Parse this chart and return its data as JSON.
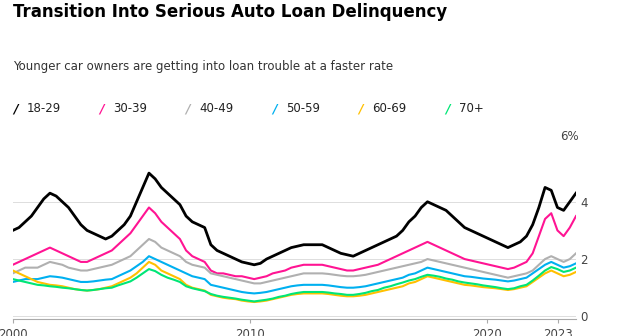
{
  "title": "Transition Into Serious Auto Loan Delinquency",
  "subtitle": "Younger car owners are getting into loan trouble at a faster rate",
  "legend": [
    "18-29",
    "30-39",
    "40-49",
    "50-59",
    "60-69",
    "70+"
  ],
  "colors": [
    "#000000",
    "#ff1493",
    "#b0b0b0",
    "#00b0f0",
    "#ffc000",
    "#00e676"
  ],
  "xlim": [
    2000,
    2023.75
  ],
  "ylim": [
    -0.1,
    6.0
  ],
  "yticks": [
    0,
    2,
    4
  ],
  "ytick_labels": [
    "0",
    "2",
    "4"
  ],
  "xticks": [
    2000,
    2010,
    2020,
    2023
  ],
  "background": "#ffffff",
  "series": {
    "18-29": [
      3.0,
      3.1,
      3.3,
      3.5,
      3.8,
      4.1,
      4.3,
      4.2,
      4.0,
      3.8,
      3.5,
      3.2,
      3.0,
      2.9,
      2.8,
      2.7,
      2.8,
      3.0,
      3.2,
      3.5,
      4.0,
      4.5,
      5.0,
      4.8,
      4.5,
      4.3,
      4.1,
      3.9,
      3.5,
      3.3,
      3.2,
      3.1,
      2.5,
      2.3,
      2.2,
      2.1,
      2.0,
      1.9,
      1.85,
      1.8,
      1.85,
      2.0,
      2.1,
      2.2,
      2.3,
      2.4,
      2.45,
      2.5,
      2.5,
      2.5,
      2.5,
      2.4,
      2.3,
      2.2,
      2.15,
      2.1,
      2.2,
      2.3,
      2.4,
      2.5,
      2.6,
      2.7,
      2.8,
      3.0,
      3.3,
      3.5,
      3.8,
      4.0,
      3.9,
      3.8,
      3.7,
      3.5,
      3.3,
      3.1,
      3.0,
      2.9,
      2.8,
      2.7,
      2.6,
      2.5,
      2.4,
      2.5,
      2.6,
      2.8,
      3.2,
      3.8,
      4.5,
      4.4,
      3.8,
      3.7,
      4.0,
      4.3
    ],
    "30-39": [
      1.8,
      1.9,
      2.0,
      2.1,
      2.2,
      2.3,
      2.4,
      2.3,
      2.2,
      2.1,
      2.0,
      1.9,
      1.9,
      2.0,
      2.1,
      2.2,
      2.3,
      2.5,
      2.7,
      2.9,
      3.2,
      3.5,
      3.8,
      3.6,
      3.3,
      3.1,
      2.9,
      2.7,
      2.3,
      2.1,
      2.0,
      1.9,
      1.6,
      1.5,
      1.5,
      1.45,
      1.4,
      1.4,
      1.35,
      1.3,
      1.35,
      1.4,
      1.5,
      1.55,
      1.6,
      1.7,
      1.75,
      1.8,
      1.8,
      1.8,
      1.8,
      1.75,
      1.7,
      1.65,
      1.6,
      1.6,
      1.65,
      1.7,
      1.75,
      1.8,
      1.9,
      2.0,
      2.1,
      2.2,
      2.3,
      2.4,
      2.5,
      2.6,
      2.5,
      2.4,
      2.3,
      2.2,
      2.1,
      2.0,
      1.95,
      1.9,
      1.85,
      1.8,
      1.75,
      1.7,
      1.65,
      1.7,
      1.8,
      1.9,
      2.2,
      2.8,
      3.4,
      3.6,
      3.0,
      2.8,
      3.1,
      3.5
    ],
    "40-49": [
      1.5,
      1.6,
      1.7,
      1.7,
      1.7,
      1.8,
      1.9,
      1.85,
      1.8,
      1.7,
      1.65,
      1.6,
      1.6,
      1.65,
      1.7,
      1.75,
      1.8,
      1.9,
      2.0,
      2.1,
      2.3,
      2.5,
      2.7,
      2.6,
      2.4,
      2.3,
      2.2,
      2.1,
      1.9,
      1.8,
      1.75,
      1.7,
      1.5,
      1.45,
      1.4,
      1.35,
      1.3,
      1.25,
      1.2,
      1.15,
      1.15,
      1.2,
      1.25,
      1.3,
      1.35,
      1.4,
      1.45,
      1.5,
      1.5,
      1.5,
      1.5,
      1.48,
      1.45,
      1.42,
      1.4,
      1.4,
      1.42,
      1.45,
      1.5,
      1.55,
      1.6,
      1.65,
      1.7,
      1.75,
      1.8,
      1.85,
      1.9,
      2.0,
      1.95,
      1.9,
      1.85,
      1.8,
      1.75,
      1.7,
      1.65,
      1.6,
      1.55,
      1.5,
      1.45,
      1.4,
      1.35,
      1.4,
      1.45,
      1.5,
      1.6,
      1.8,
      2.0,
      2.1,
      2.0,
      1.9,
      2.0,
      2.2
    ],
    "50-59": [
      1.2,
      1.25,
      1.3,
      1.3,
      1.3,
      1.35,
      1.4,
      1.38,
      1.35,
      1.3,
      1.25,
      1.2,
      1.2,
      1.22,
      1.25,
      1.28,
      1.3,
      1.4,
      1.5,
      1.6,
      1.75,
      1.9,
      2.1,
      2.0,
      1.9,
      1.8,
      1.7,
      1.6,
      1.5,
      1.4,
      1.35,
      1.3,
      1.1,
      1.05,
      1.0,
      0.95,
      0.9,
      0.85,
      0.82,
      0.8,
      0.82,
      0.85,
      0.9,
      0.95,
      1.0,
      1.05,
      1.08,
      1.1,
      1.1,
      1.1,
      1.1,
      1.08,
      1.05,
      1.02,
      1.0,
      1.0,
      1.02,
      1.05,
      1.1,
      1.15,
      1.2,
      1.25,
      1.3,
      1.35,
      1.45,
      1.5,
      1.6,
      1.7,
      1.65,
      1.6,
      1.55,
      1.5,
      1.45,
      1.4,
      1.38,
      1.35,
      1.32,
      1.3,
      1.28,
      1.25,
      1.22,
      1.25,
      1.3,
      1.35,
      1.5,
      1.65,
      1.8,
      1.9,
      1.8,
      1.7,
      1.75,
      1.85
    ],
    "60-69": [
      1.6,
      1.5,
      1.4,
      1.3,
      1.2,
      1.15,
      1.1,
      1.08,
      1.05,
      1.0,
      0.95,
      0.92,
      0.9,
      0.92,
      0.95,
      1.0,
      1.05,
      1.15,
      1.25,
      1.35,
      1.5,
      1.7,
      1.9,
      1.8,
      1.6,
      1.5,
      1.4,
      1.3,
      1.1,
      1.0,
      0.95,
      0.9,
      0.75,
      0.7,
      0.65,
      0.62,
      0.6,
      0.55,
      0.52,
      0.5,
      0.52,
      0.55,
      0.6,
      0.65,
      0.7,
      0.75,
      0.78,
      0.8,
      0.8,
      0.8,
      0.8,
      0.78,
      0.75,
      0.72,
      0.7,
      0.7,
      0.72,
      0.75,
      0.8,
      0.85,
      0.9,
      0.95,
      1.0,
      1.05,
      1.15,
      1.2,
      1.3,
      1.4,
      1.35,
      1.3,
      1.25,
      1.2,
      1.15,
      1.1,
      1.08,
      1.05,
      1.02,
      1.0,
      0.98,
      0.95,
      0.92,
      0.95,
      1.0,
      1.05,
      1.2,
      1.35,
      1.5,
      1.6,
      1.5,
      1.4,
      1.45,
      1.55
    ],
    "70+": [
      1.3,
      1.25,
      1.2,
      1.15,
      1.1,
      1.08,
      1.05,
      1.03,
      1.0,
      0.98,
      0.95,
      0.92,
      0.9,
      0.92,
      0.95,
      0.98,
      1.0,
      1.08,
      1.15,
      1.22,
      1.35,
      1.5,
      1.65,
      1.58,
      1.45,
      1.35,
      1.28,
      1.2,
      1.05,
      0.98,
      0.93,
      0.88,
      0.78,
      0.72,
      0.68,
      0.65,
      0.62,
      0.58,
      0.55,
      0.52,
      0.55,
      0.58,
      0.62,
      0.68,
      0.72,
      0.78,
      0.82,
      0.85,
      0.85,
      0.85,
      0.85,
      0.83,
      0.8,
      0.78,
      0.75,
      0.75,
      0.78,
      0.82,
      0.88,
      0.92,
      1.0,
      1.05,
      1.12,
      1.18,
      1.25,
      1.3,
      1.38,
      1.45,
      1.42,
      1.38,
      1.32,
      1.28,
      1.22,
      1.18,
      1.15,
      1.12,
      1.08,
      1.05,
      1.02,
      0.98,
      0.95,
      0.98,
      1.05,
      1.1,
      1.25,
      1.42,
      1.6,
      1.72,
      1.65,
      1.55,
      1.6,
      1.7
    ]
  }
}
